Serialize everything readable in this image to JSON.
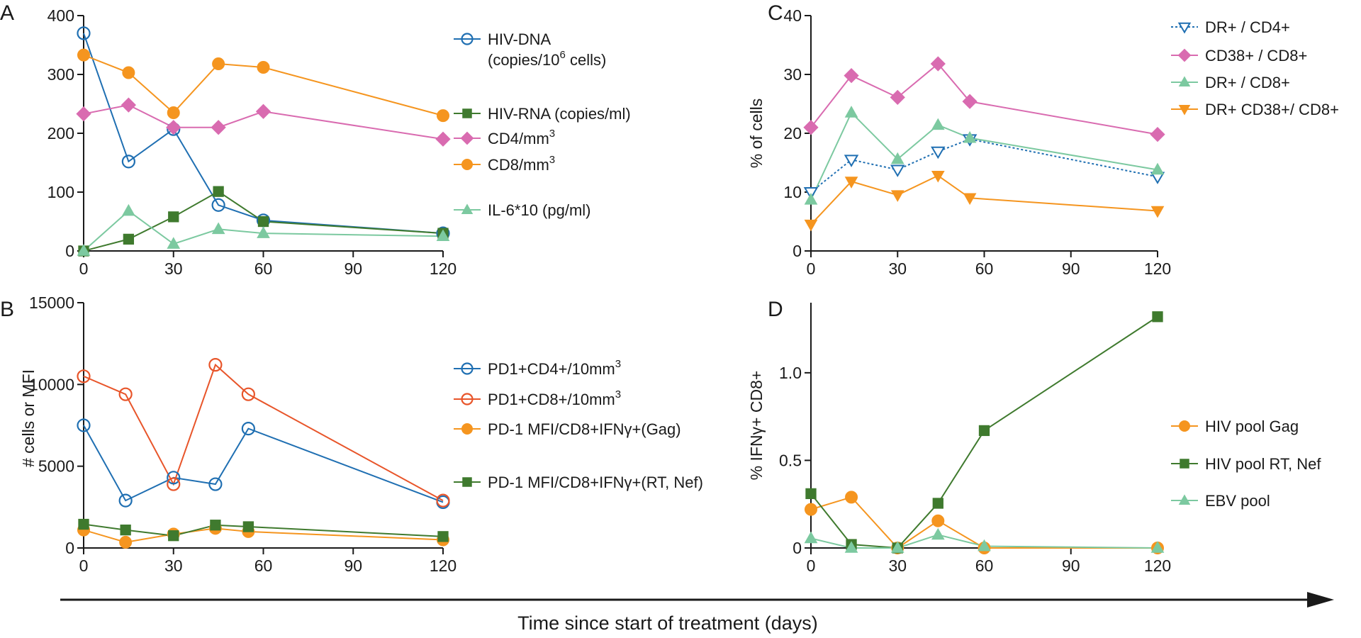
{
  "figure": {
    "bottom_axis_label": "Time since start of treatment (days)"
  },
  "chart_data": [
    {
      "panel": "A",
      "type": "line",
      "xlabel": "",
      "ylabel": "",
      "x_ticks": [
        0,
        30,
        60,
        90,
        120
      ],
      "y_ticks": [
        0,
        100,
        200,
        300,
        400
      ],
      "xlim": [
        0,
        120
      ],
      "ylim": [
        0,
        400
      ],
      "legend_position": "right",
      "series": [
        {
          "name": "HIV-DNA",
          "name_line2_pre": "(copies/10",
          "name_sup": "6",
          "name_line2_post": " cells)",
          "marker": "circle-open",
          "color": "#1f6fb2",
          "dash": false,
          "x": [
            0,
            15,
            30,
            45,
            60,
            120
          ],
          "y": [
            370,
            152,
            207,
            78,
            52,
            30
          ]
        },
        {
          "name": "HIV-RNA (copies/ml)",
          "marker": "square",
          "color": "#3f7a2e",
          "dash": false,
          "x": [
            0,
            15,
            30,
            45,
            60,
            120
          ],
          "y": [
            0,
            20,
            58,
            101,
            50,
            30
          ]
        },
        {
          "name": "CD4/mm",
          "name_sup": "3",
          "marker": "diamond",
          "color": "#d96bb0",
          "dash": false,
          "x": [
            0,
            15,
            30,
            45,
            60,
            120
          ],
          "y": [
            233,
            248,
            210,
            210,
            237,
            190
          ]
        },
        {
          "name": "CD8/mm",
          "name_sup": "3",
          "marker": "circle",
          "color": "#f5951f",
          "dash": false,
          "x": [
            0,
            15,
            30,
            45,
            60,
            120
          ],
          "y": [
            333,
            303,
            235,
            318,
            312,
            230
          ]
        },
        {
          "name": "IL-6*10 (pg/ml)",
          "marker": "triangle-up",
          "color": "#7cc9a0",
          "dash": false,
          "x": [
            0,
            15,
            30,
            45,
            60,
            120
          ],
          "y": [
            0,
            68,
            12,
            37,
            30,
            25
          ]
        }
      ]
    },
    {
      "panel": "B",
      "type": "line",
      "xlabel": "",
      "ylabel": "# cells or MFI",
      "x_ticks": [
        0,
        30,
        60,
        90,
        120
      ],
      "y_ticks": [
        0,
        5000,
        10000,
        15000
      ],
      "xlim": [
        0,
        120
      ],
      "ylim": [
        0,
        15000
      ],
      "legend_position": "right",
      "series": [
        {
          "name": "PD1+CD4+/10mm",
          "name_sup": "3",
          "marker": "circle-open",
          "color": "#1f6fb2",
          "dash": false,
          "x": [
            0,
            14,
            30,
            44,
            55,
            120
          ],
          "y": [
            7500,
            2900,
            4300,
            3900,
            7300,
            2800
          ]
        },
        {
          "name": "PD1+CD8+/10mm",
          "name_sup": "3",
          "marker": "circle-open",
          "color": "#e8552a",
          "dash": false,
          "x": [
            0,
            14,
            30,
            44,
            55,
            120
          ],
          "y": [
            10500,
            9400,
            3900,
            11200,
            9400,
            2900
          ]
        },
        {
          "name": "PD-1 MFI/CD8+IFNγ+(Gag)",
          "marker": "circle",
          "color": "#f5951f",
          "dash": false,
          "x": [
            0,
            14,
            30,
            44,
            55,
            120
          ],
          "y": [
            1100,
            350,
            850,
            1200,
            1000,
            500
          ]
        },
        {
          "name": "PD-1 MFI/CD8+IFNγ+(RT, Nef)",
          "marker": "square",
          "color": "#3f7a2e",
          "dash": false,
          "x": [
            0,
            14,
            30,
            44,
            55,
            120
          ],
          "y": [
            1450,
            1100,
            750,
            1400,
            1300,
            700
          ]
        }
      ]
    },
    {
      "panel": "C",
      "type": "line",
      "xlabel": "",
      "ylabel": "% of cells",
      "x_ticks": [
        0,
        30,
        60,
        90,
        120
      ],
      "y_ticks": [
        0,
        10,
        20,
        30,
        40
      ],
      "xlim": [
        0,
        120
      ],
      "ylim": [
        0,
        40
      ],
      "legend_position": "top-right",
      "series": [
        {
          "name": "DR+ / CD4+",
          "marker": "triangle-down-open",
          "color": "#1f6fb2",
          "dash": true,
          "x": [
            0,
            14,
            30,
            44,
            55,
            120
          ],
          "y": [
            10,
            15.5,
            13.8,
            16.9,
            19,
            12.6
          ]
        },
        {
          "name": "CD38+ / CD8+",
          "marker": "diamond",
          "color": "#d96bb0",
          "dash": false,
          "x": [
            0,
            14,
            30,
            44,
            55,
            120
          ],
          "y": [
            21,
            29.8,
            26.1,
            31.8,
            25.4,
            19.8
          ]
        },
        {
          "name": "DR+ / CD8+",
          "marker": "triangle-up",
          "color": "#7cc9a0",
          "dash": false,
          "x": [
            0,
            14,
            30,
            44,
            55,
            120
          ],
          "y": [
            8.7,
            23.5,
            15.6,
            21.4,
            19.2,
            13.8
          ]
        },
        {
          "name": "DR+ CD38+/ CD8+",
          "marker": "triangle-down",
          "color": "#f5951f",
          "dash": false,
          "x": [
            0,
            14,
            30,
            44,
            55,
            120
          ],
          "y": [
            4.5,
            11.8,
            9.5,
            12.8,
            9,
            6.8
          ]
        }
      ]
    },
    {
      "panel": "D",
      "type": "line",
      "xlabel": "",
      "ylabel": "% IFNγ+ CD8+",
      "x_ticks": [
        0,
        30,
        60,
        90,
        120
      ],
      "y_ticks": [
        0,
        0.5,
        1.0
      ],
      "y_tick_labels": [
        "0",
        "0.5",
        "1.0"
      ],
      "xlim": [
        0,
        120
      ],
      "ylim": [
        0,
        1.4
      ],
      "legend_position": "right",
      "series": [
        {
          "name": "HIV pool Gag",
          "marker": "circle",
          "color": "#f5951f",
          "dash": false,
          "x": [
            0,
            14,
            30,
            44,
            60,
            120
          ],
          "y": [
            0.22,
            0.29,
            0,
            0.155,
            0,
            0
          ]
        },
        {
          "name": "HIV pool RT, Nef",
          "marker": "square",
          "color": "#3f7a2e",
          "dash": false,
          "x": [
            0,
            14,
            30,
            44,
            60,
            120
          ],
          "y": [
            0.31,
            0.02,
            0,
            0.255,
            0.67,
            1.32
          ]
        },
        {
          "name": "EBV pool",
          "marker": "triangle-up",
          "color": "#7cc9a0",
          "dash": false,
          "x": [
            0,
            14,
            30,
            44,
            60,
            120
          ],
          "y": [
            0.055,
            0,
            0,
            0.075,
            0.01,
            0
          ]
        }
      ]
    }
  ]
}
